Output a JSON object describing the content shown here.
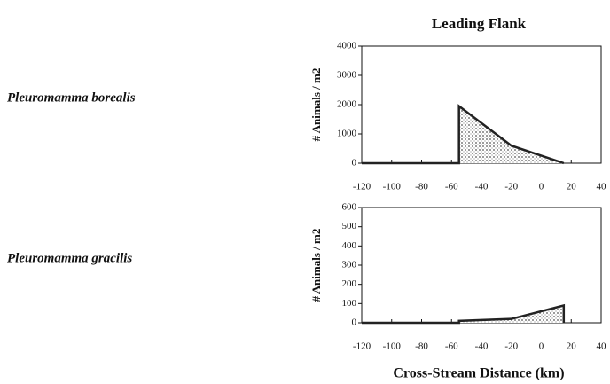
{
  "chart_data": [
    {
      "type": "area",
      "title": "Leading Flank",
      "ylabel": "# Animals / m2",
      "x": [
        -120,
        -55,
        -55,
        -20,
        15
      ],
      "series": [
        {
          "name": "Pleuromamma borealis",
          "color": "#222222",
          "values": [
            0,
            0,
            1950,
            600,
            0
          ]
        }
      ],
      "xlim": [
        -120,
        40
      ],
      "xticks": [
        -120,
        -100,
        -80,
        -60,
        -40,
        -20,
        0,
        20,
        40
      ],
      "ylim": [
        0,
        4000
      ],
      "yticks": [
        0,
        1000,
        2000,
        3000,
        4000
      ]
    },
    {
      "type": "area",
      "ylabel": "# Animals / m2",
      "xlabel": "Cross-Stream Distance (km)",
      "x": [
        -120,
        -55,
        -55,
        -20,
        15,
        15
      ],
      "series": [
        {
          "name": "Pleuromamma gracilis",
          "color": "#222222",
          "values": [
            0,
            0,
            10,
            20,
            90,
            0
          ]
        }
      ],
      "xlim": [
        -120,
        40
      ],
      "xticks": [
        -120,
        -100,
        -80,
        -60,
        -40,
        -20,
        0,
        20,
        40
      ],
      "ylim": [
        0,
        600
      ],
      "yticks": [
        0,
        100,
        200,
        300,
        400,
        500,
        600
      ]
    }
  ]
}
